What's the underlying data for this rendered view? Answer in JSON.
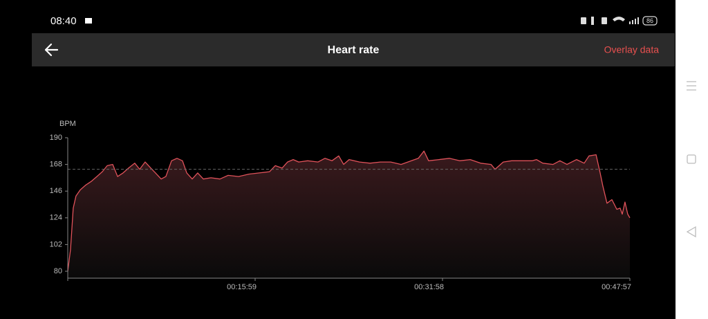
{
  "status_bar": {
    "time": "08:40",
    "battery": "86"
  },
  "header": {
    "title": "Heart rate",
    "action": "Overlay data"
  },
  "chart_data": {
    "type": "line",
    "y_label": "BPM",
    "x": [
      0,
      14,
      28,
      42,
      64,
      92,
      120,
      149,
      177,
      202,
      230,
      255,
      283,
      311,
      343,
      368,
      396,
      425,
      449,
      478,
      502,
      531,
      559,
      587,
      609,
      637,
      665,
      694,
      733,
      779,
      821,
      874,
      927,
      980,
      1033,
      1062,
      1097,
      1125,
      1154,
      1182,
      1228,
      1281,
      1316,
      1352,
      1387,
      1412,
      1440,
      1493,
      1547,
      1600,
      1653,
      1706,
      1759,
      1794,
      1823,
      1847,
      1900,
      1953,
      2006,
      2060,
      2113,
      2166,
      2187,
      2229,
      2272,
      2325,
      2378,
      2399,
      2431,
      2484,
      2519,
      2555,
      2604,
      2643,
      2668,
      2704,
      2725,
      2739,
      2760,
      2785,
      2810,
      2827,
      2838,
      2852,
      2866,
      2877
    ],
    "series": [
      {
        "color": "#e0525a",
        "values": [
          80,
          98,
          132,
          142,
          147,
          151,
          154,
          158,
          162,
          167,
          168,
          158,
          161,
          165,
          169,
          164,
          170,
          165,
          161,
          156,
          158,
          171,
          173,
          171,
          161,
          156,
          161,
          156,
          157,
          156,
          159,
          158,
          160,
          161,
          162,
          167,
          165,
          170,
          172,
          170,
          171,
          170,
          173,
          171,
          175,
          168,
          172,
          170,
          169,
          170,
          170,
          168,
          171,
          173,
          179,
          171,
          172,
          173,
          171,
          172,
          169,
          168,
          164,
          170,
          171,
          171,
          171,
          172,
          169,
          168,
          171,
          168,
          172,
          169,
          175,
          176,
          161,
          150,
          136,
          139,
          131,
          132,
          127,
          137,
          127,
          124
        ]
      }
    ],
    "reference_line": 164,
    "xlim": [
      0,
      2877
    ],
    "ylim": [
      80,
      190
    ],
    "yticks": [
      80,
      102,
      124,
      146,
      168,
      190
    ],
    "xticks": [
      {
        "value": 959,
        "label": "00:15:59"
      },
      {
        "value": 1918,
        "label": "00:31:58"
      },
      {
        "value": 2877,
        "label": "00:47:57"
      }
    ]
  }
}
